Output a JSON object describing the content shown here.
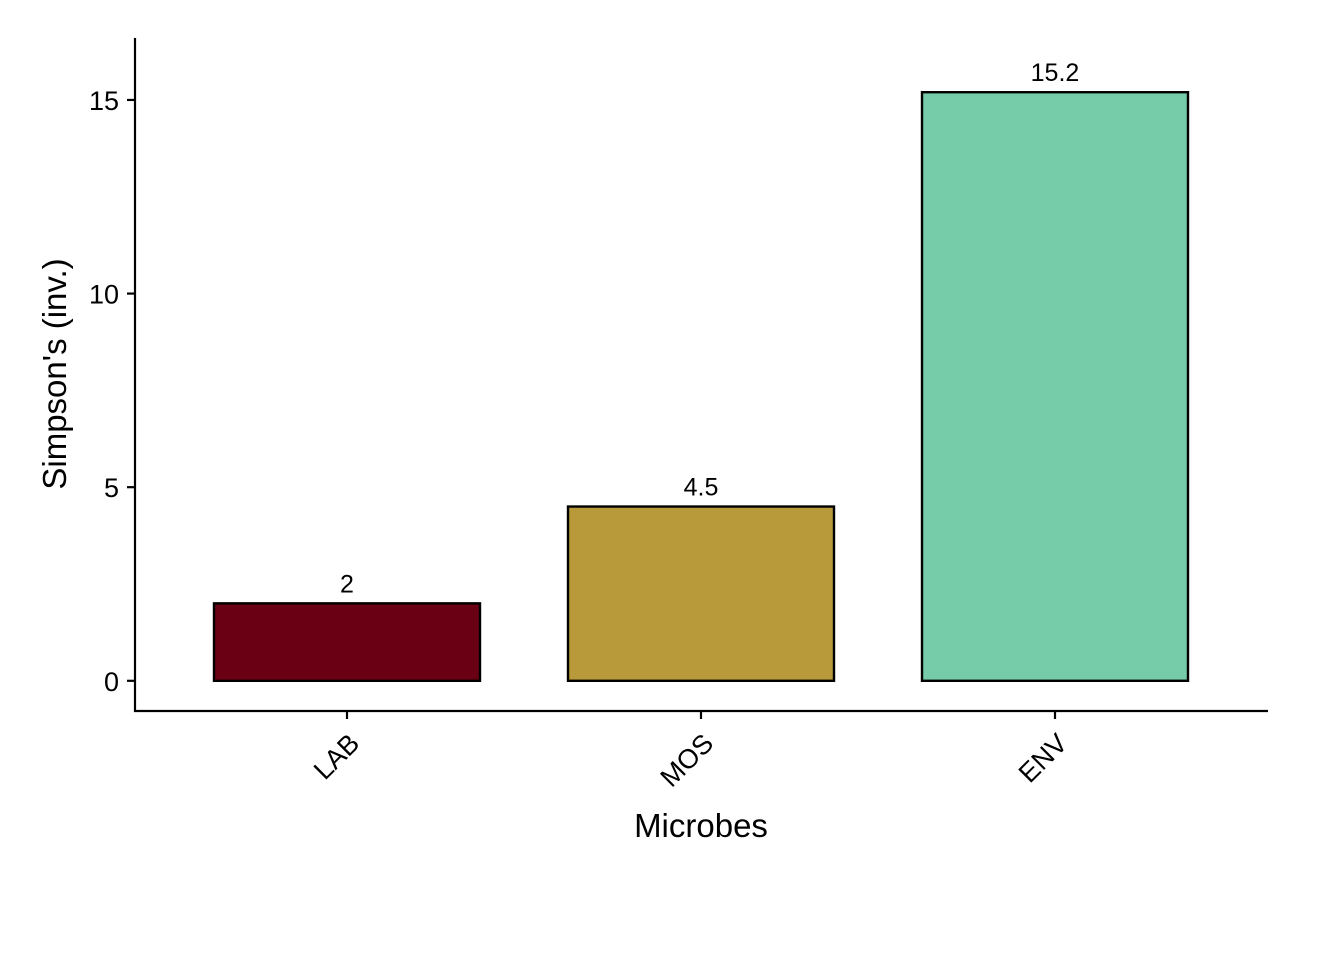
{
  "chart_data": {
    "type": "bar",
    "categories": [
      "LAB",
      "MOS",
      "ENV"
    ],
    "values": [
      2,
      4.5,
      15.2
    ],
    "data_labels": [
      "2",
      "4.5",
      "15.2"
    ],
    "colors": [
      "#6a0013",
      "#b89a3a",
      "#76cba8"
    ],
    "title": "",
    "xlabel": "Microbes",
    "ylabel": "Simpson's (inv.)",
    "ylim": [
      -0.78,
      16.6
    ],
    "yticks": [
      0,
      5,
      10,
      15
    ],
    "ytick_labels": [
      "0",
      "5",
      "10",
      "15"
    ],
    "grid": false,
    "legend": "none"
  }
}
